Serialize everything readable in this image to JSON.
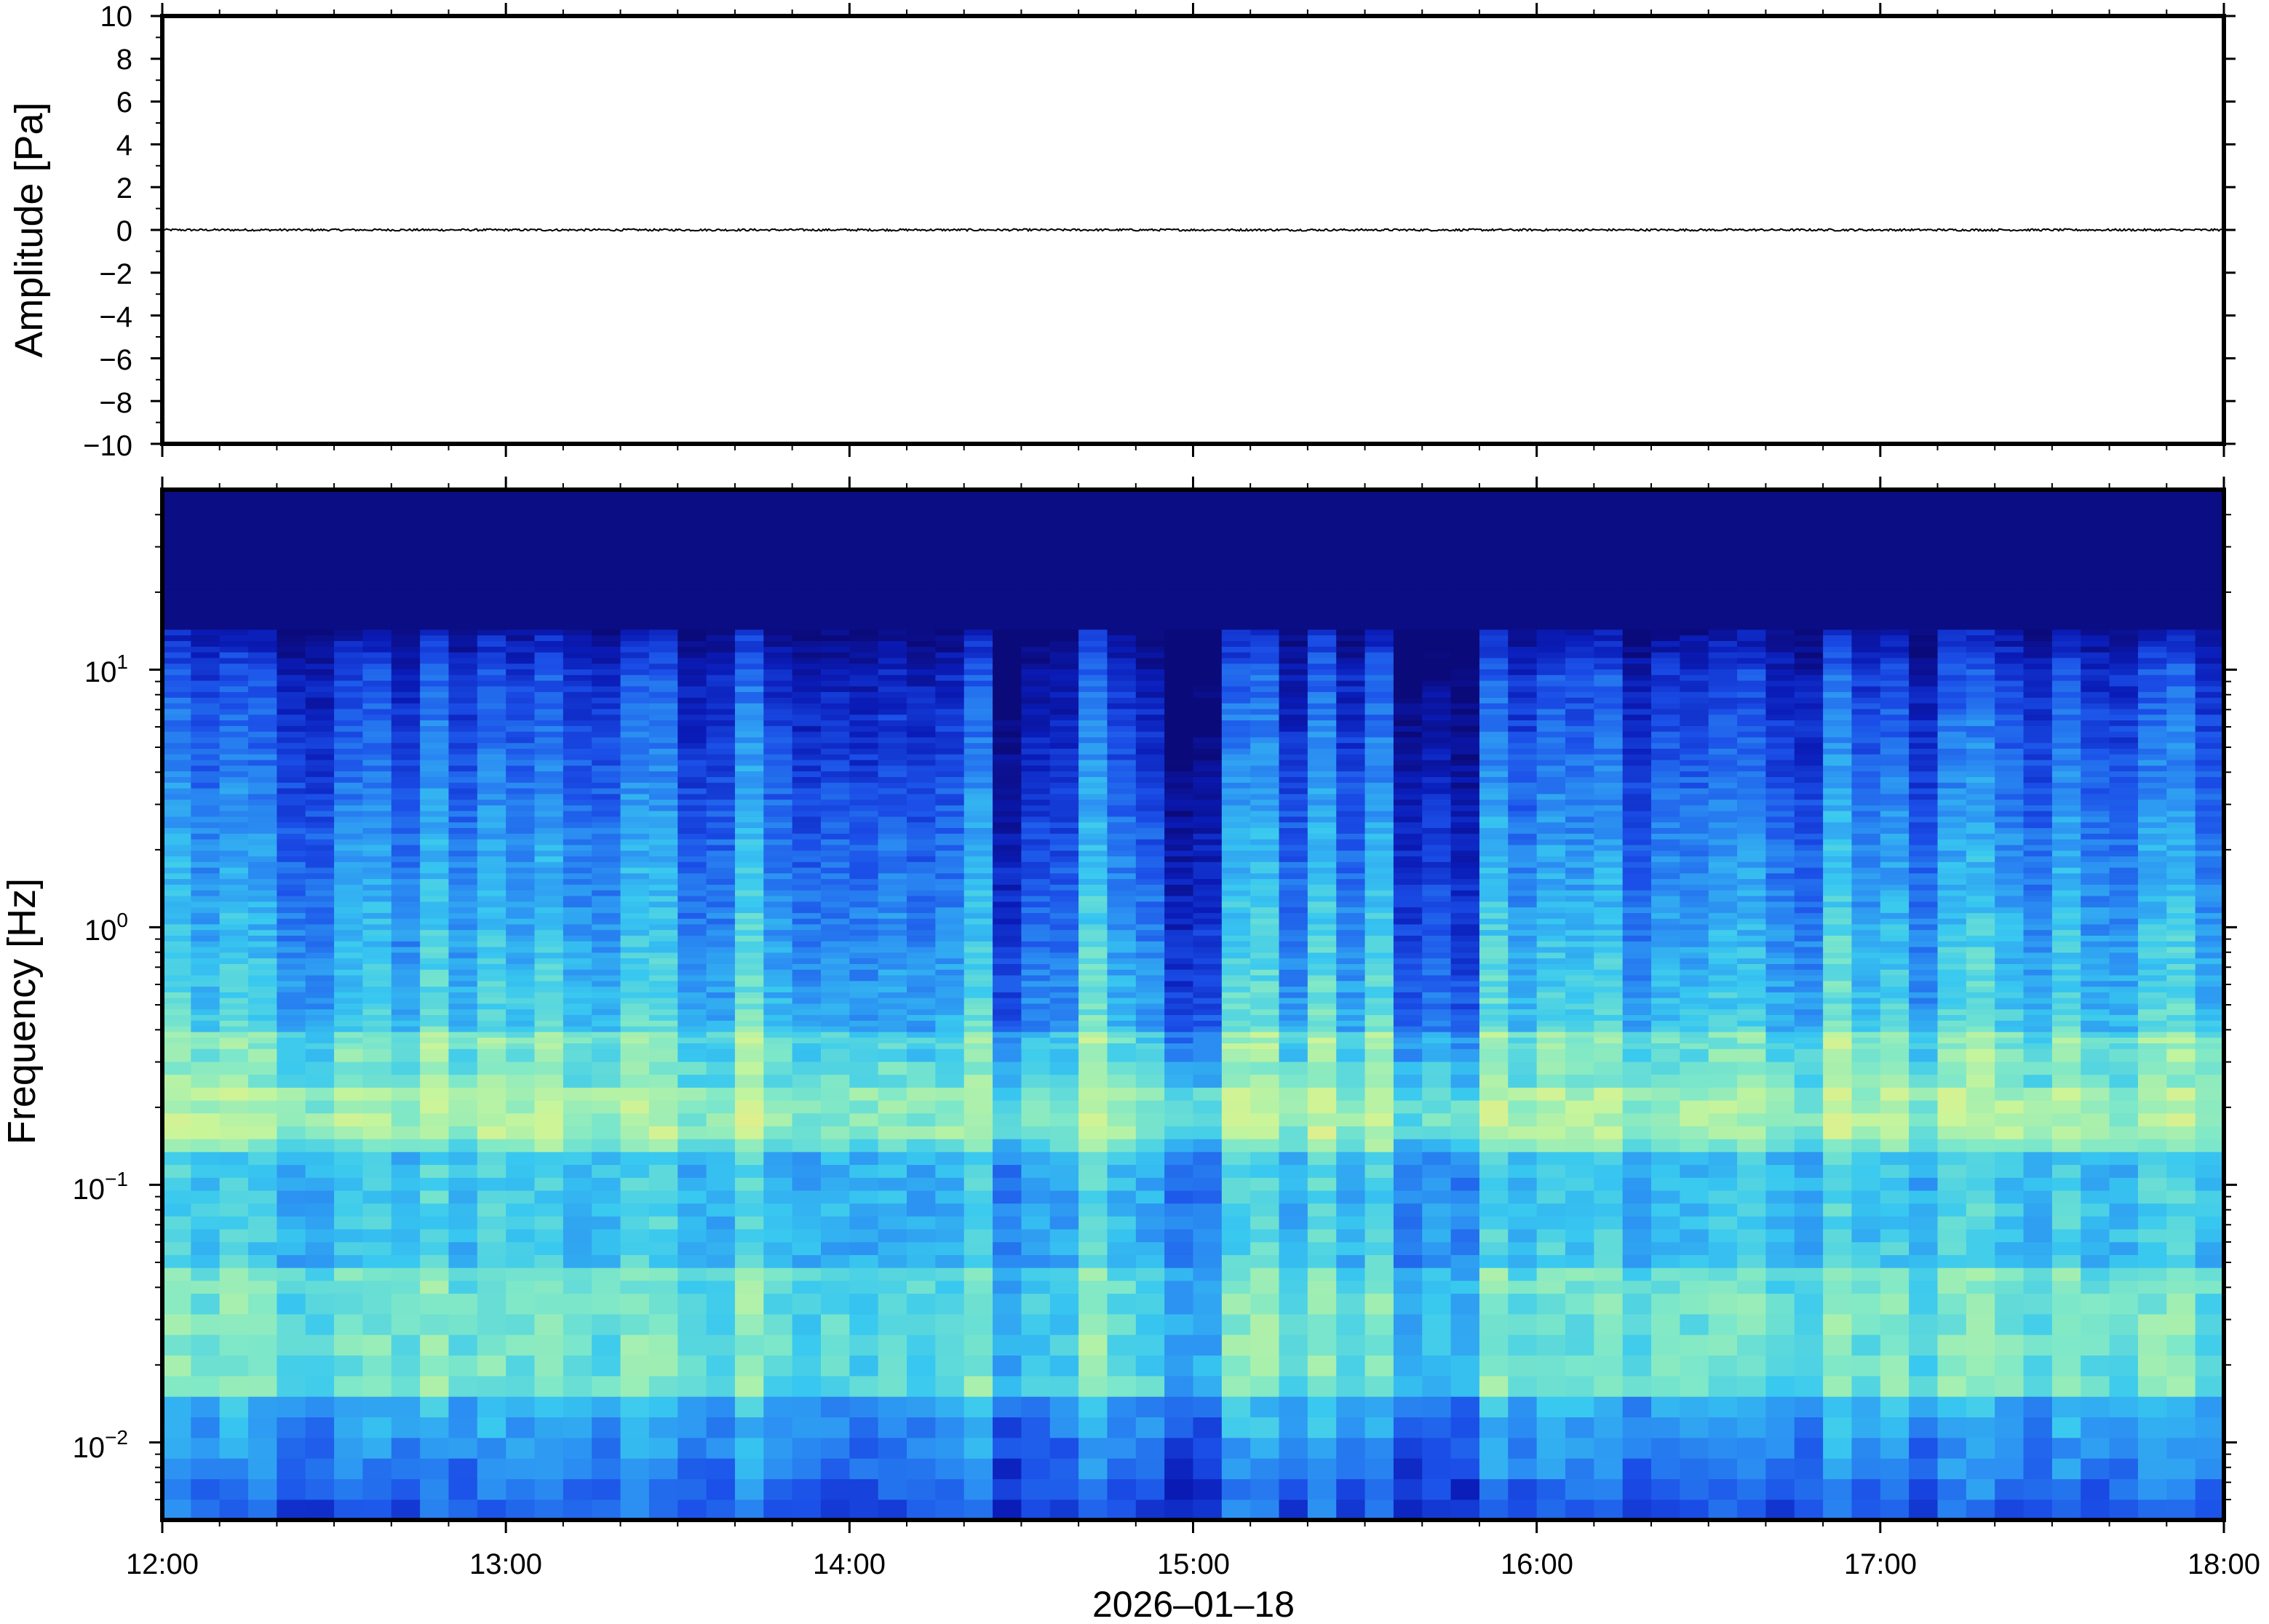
{
  "chart_data": [
    {
      "type": "line",
      "panel": "waveform",
      "ylabel": "Amplitude [Pa]",
      "ylim": [
        -10,
        10
      ],
      "y_ticks": [
        10,
        8,
        6,
        4,
        2,
        0,
        -2,
        -4,
        -6,
        -8,
        -10
      ],
      "y_tick_labels": [
        "10",
        "8",
        "6",
        "4",
        "2",
        "0",
        "−2",
        "−4",
        "−6",
        "−8",
        "−10"
      ],
      "xlim": [
        "12:00",
        "18:00"
      ],
      "trace_color": "#000000",
      "trace_amplitude_approx": 0.05
    },
    {
      "type": "heatmap",
      "panel": "spectrogram",
      "ylabel": "Frequency [Hz]",
      "y_scale": "log",
      "ylim": [
        0.005,
        50
      ],
      "y_ticks": [
        {
          "value": 10,
          "base": "10",
          "exp": "1"
        },
        {
          "value": 1,
          "base": "10",
          "exp": "0"
        },
        {
          "value": 0.1,
          "base": "10",
          "exp": "−1"
        },
        {
          "value": 0.01,
          "base": "10",
          "exp": "−2"
        }
      ],
      "x_ticks": [
        "12:00",
        "13:00",
        "14:00",
        "15:00",
        "16:00",
        "17:00",
        "18:00"
      ],
      "xlabel": "2026–01–18",
      "colormap": [
        "#0b0a7a",
        "#0a1cb8",
        "#1b4fe8",
        "#2b8ef2",
        "#38c8f0",
        "#7fe8c8",
        "#c8f59a",
        "#f2ea82",
        "#f4c66a"
      ],
      "grid": false
    }
  ],
  "axes": {
    "amp_ylabel": "Amplitude [Pa]",
    "freq_ylabel": "Frequency [Hz]",
    "date_label": "2026–01–18",
    "amp_ticks": [
      "10",
      "8",
      "6",
      "4",
      "2",
      "0",
      "−2",
      "−4",
      "−6",
      "−8",
      "−10"
    ],
    "x_ticks": [
      "12:00",
      "13:00",
      "14:00",
      "15:00",
      "16:00",
      "17:00",
      "18:00"
    ],
    "freq_ticks": [
      {
        "base": "10",
        "exp": "1"
      },
      {
        "base": "10",
        "exp": "0"
      },
      {
        "base": "10",
        "exp": "−1"
      },
      {
        "base": "10",
        "exp": "−2"
      }
    ]
  }
}
